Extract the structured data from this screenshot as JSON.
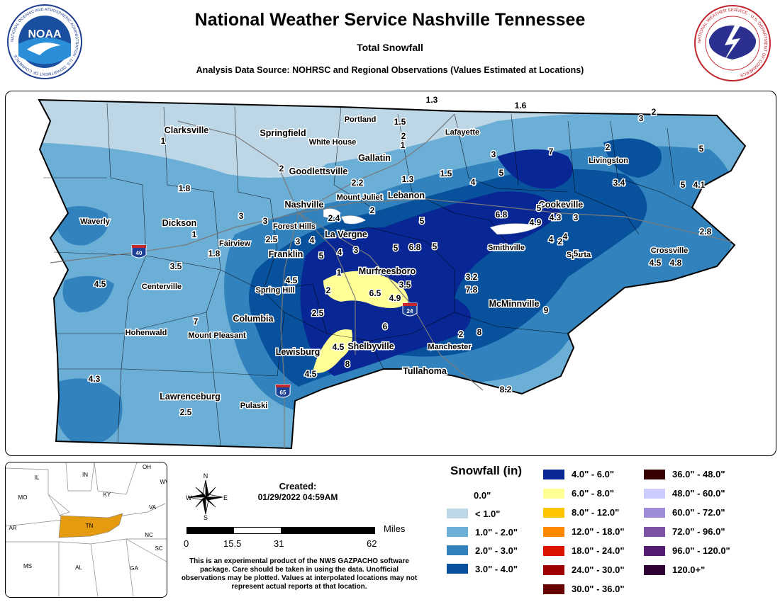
{
  "header": {
    "title": "National Weather Service Nashville Tennessee",
    "subtitle": "Total Snowfall",
    "source": "Analysis Data Source: NOHRSC and Regional Observations (Values Estimated at Locations)",
    "noaa_logo_text": "NOAA",
    "noaa_ring_text": "NATIONAL OCEANIC AND ATMOSPHERIC ADMINISTRATION · U.S. DEPARTMENT OF COMMERCE",
    "nws_ring_text": "NATIONAL WEATHER SERVICE · U.S. DEPARTMENT OF COMMERCE"
  },
  "cities": [
    {
      "name": "Clarksville",
      "big": true
    },
    {
      "name": "Springfield",
      "big": true
    },
    {
      "name": "Portland",
      "big": false
    },
    {
      "name": "White House",
      "big": false
    },
    {
      "name": "Lafayette",
      "big": false
    },
    {
      "name": "Gallatin",
      "big": true
    },
    {
      "name": "Goodlettsville",
      "big": true
    },
    {
      "name": "Livingston",
      "big": false
    },
    {
      "name": "Mount Juliet",
      "big": false
    },
    {
      "name": "Lebanon",
      "big": true
    },
    {
      "name": "Nashville",
      "big": true
    },
    {
      "name": "Cookeville",
      "big": true
    },
    {
      "name": "Waverly",
      "big": false
    },
    {
      "name": "Dickson",
      "big": true
    },
    {
      "name": "Forest Hills",
      "big": false
    },
    {
      "name": "La Vergne",
      "big": true
    },
    {
      "name": "Fairview",
      "big": false
    },
    {
      "name": "Franklin",
      "big": true
    },
    {
      "name": "Smithville",
      "big": false
    },
    {
      "name": "Sparta",
      "big": false
    },
    {
      "name": "Crossville",
      "big": false
    },
    {
      "name": "Murfreesboro",
      "big": true
    },
    {
      "name": "Centerville",
      "big": false
    },
    {
      "name": "Spring Hill",
      "big": false
    },
    {
      "name": "McMinnville",
      "big": true
    },
    {
      "name": "Columbia",
      "big": true
    },
    {
      "name": "Hohenwald",
      "big": false
    },
    {
      "name": "Mount Pleasant",
      "big": false
    },
    {
      "name": "Lewisburg",
      "big": true
    },
    {
      "name": "Shelbyville",
      "big": true
    },
    {
      "name": "Manchester",
      "big": false
    },
    {
      "name": "Tullahoma",
      "big": true
    },
    {
      "name": "Lawrenceburg",
      "big": true
    },
    {
      "name": "Pulaski",
      "big": false
    }
  ],
  "values": [
    "1.3",
    "1.6",
    "2",
    "3",
    "1.5",
    "1",
    "2",
    "1",
    "7",
    "2",
    "5",
    "3",
    "2",
    "2.2",
    "1.3",
    "1.5",
    "5",
    "4",
    "3.4",
    "5",
    "4.1",
    "1.8",
    "2",
    "2.4",
    "3",
    "5",
    "6.8",
    "4.3",
    "5",
    "3",
    "4",
    "3",
    "1",
    "1.8",
    "2.5",
    "3",
    "4",
    "4.9",
    "4.5",
    "4",
    "3",
    "5",
    "6.8",
    "5",
    "5",
    "4",
    "2",
    "5",
    "2.8",
    "4.8",
    "3.5",
    "1",
    "4.5",
    "3.2",
    "4.5",
    "3.5",
    "2",
    "6.5",
    "4.9",
    "7.8",
    "9",
    "2.5",
    "7",
    "6",
    "2",
    "8",
    "4.5",
    "4.5",
    "8",
    "4.3",
    "8.2",
    "2.5",
    "2",
    "1"
  ],
  "highways": [
    "40",
    "24",
    "65"
  ],
  "inset_states": [
    "IL",
    "IN",
    "OH",
    "WV",
    "MO",
    "KY",
    "VA",
    "TN",
    "AR",
    "NC",
    "SC",
    "MS",
    "AL",
    "GA"
  ],
  "created": {
    "label": "Created:",
    "value": "01/29/2022 04:59AM"
  },
  "scale": {
    "unit": "Miles",
    "ticks": [
      "0",
      "15.5",
      "31",
      "62"
    ]
  },
  "compass": {
    "N": "N",
    "S": "S",
    "E": "E",
    "W": "W"
  },
  "disclaimer": "This is an experimental product of the NWS GAZPACHO software package. Care should be taken in using the data. Unofficial observations may be plotted. Values at interpolated locations may not represent actual reports at that location.",
  "legend": {
    "title": "Snowfall (in)",
    "items": [
      {
        "label": "0.0\"",
        "color": "#ffffff"
      },
      {
        "label": "< 1.0\"",
        "color": "#bdd7e7"
      },
      {
        "label": "1.0\" - 2.0\"",
        "color": "#6baed6"
      },
      {
        "label": "2.0\" - 3.0\"",
        "color": "#3182bd"
      },
      {
        "label": "3.0\" - 4.0\"",
        "color": "#08519c"
      },
      {
        "label": "4.0\" - 6.0\"",
        "color": "#082694"
      },
      {
        "label": "6.0\" - 8.0\"",
        "color": "#ffff96"
      },
      {
        "label": "8.0\" - 12.0\"",
        "color": "#ffc400"
      },
      {
        "label": "12.0\" - 18.0\"",
        "color": "#ff8700"
      },
      {
        "label": "18.0\" - 24.0\"",
        "color": "#db1400"
      },
      {
        "label": "24.0\" - 30.0\"",
        "color": "#9e0000"
      },
      {
        "label": "30.0\" - 36.0\"",
        "color": "#690000"
      },
      {
        "label": "36.0\" - 48.0\"",
        "color": "#360000"
      },
      {
        "label": "48.0\" - 60.0\"",
        "color": "#ccccff"
      },
      {
        "label": "60.0\" - 72.0\"",
        "color": "#9f8cd8"
      },
      {
        "label": "72.0\" - 96.0\"",
        "color": "#7c52a5"
      },
      {
        "label": "96.0\" - 120.0\"",
        "color": "#561c72"
      },
      {
        "label": "120.0+\"",
        "color": "#2e0033"
      }
    ]
  }
}
